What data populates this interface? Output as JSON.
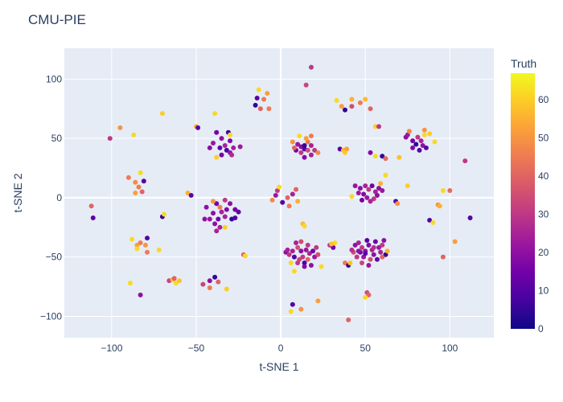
{
  "chart_data": {
    "type": "scatter",
    "title": "CMU-PIE",
    "xlabel": "t-SNE 1",
    "ylabel": "t-SNE 2",
    "xlim": [
      -128,
      126
    ],
    "ylim": [
      -118,
      126
    ],
    "xticks": [
      -100,
      -50,
      0,
      50,
      100
    ],
    "yticks": [
      -100,
      -50,
      0,
      50,
      100
    ],
    "grid": true,
    "colorbar": {
      "title": "Truth",
      "range": [
        0,
        67
      ],
      "ticks": [
        0,
        10,
        20,
        30,
        40,
        50,
        60
      ]
    },
    "colors": {
      "plot_bg": "#e5ecf6",
      "grid": "#ffffff",
      "colorscale": [
        "#0d0887",
        "#46039f",
        "#7201a8",
        "#9c179e",
        "#bd3786",
        "#d8576b",
        "#ed7953",
        "#fb9f3a",
        "#fdca26",
        "#f0f921"
      ]
    },
    "points": [
      {
        "x": -38,
        "y": 55,
        "c": 15
      },
      {
        "x": -35,
        "y": 50,
        "c": 20
      },
      {
        "x": -30,
        "y": 48,
        "c": 18
      },
      {
        "x": -40,
        "y": 46,
        "c": 22
      },
      {
        "x": -33,
        "y": 44,
        "c": 25
      },
      {
        "x": -36,
        "y": 42,
        "c": 12
      },
      {
        "x": -28,
        "y": 42,
        "c": 24
      },
      {
        "x": -42,
        "y": 42,
        "c": 19
      },
      {
        "x": -32,
        "y": 40,
        "c": 8
      },
      {
        "x": -30,
        "y": 38,
        "c": 21
      },
      {
        "x": -35,
        "y": 36,
        "c": 16
      },
      {
        "x": -29,
        "y": 36,
        "c": 27
      },
      {
        "x": -38,
        "y": 34,
        "c": 60
      },
      {
        "x": -24,
        "y": 43,
        "c": 23
      },
      {
        "x": -31,
        "y": 55,
        "c": 5
      },
      {
        "x": -30,
        "y": 53,
        "c": 62
      },
      {
        "x": -50,
        "y": 60,
        "c": 55
      },
      {
        "x": -49,
        "y": 59,
        "c": 12
      },
      {
        "x": -39,
        "y": 71,
        "c": 62
      },
      {
        "x": -14,
        "y": 84,
        "c": 10
      },
      {
        "x": -15,
        "y": 78,
        "c": 5
      },
      {
        "x": -13,
        "y": 91,
        "c": 62
      },
      {
        "x": -10,
        "y": 83,
        "c": 45
      },
      {
        "x": -8,
        "y": 88,
        "c": 52
      },
      {
        "x": -12,
        "y": 75,
        "c": 40
      },
      {
        "x": -7,
        "y": 75,
        "c": 45
      },
      {
        "x": 18,
        "y": 110,
        "c": 30
      },
      {
        "x": 15,
        "y": 95,
        "c": 33
      },
      {
        "x": 7,
        "y": 47,
        "c": 50
      },
      {
        "x": 10,
        "y": 45,
        "c": 22
      },
      {
        "x": 12,
        "y": 43,
        "c": 20
      },
      {
        "x": 14,
        "y": 41,
        "c": 10
      },
      {
        "x": 16,
        "y": 47,
        "c": 45
      },
      {
        "x": 18,
        "y": 44,
        "c": 25
      },
      {
        "x": 9,
        "y": 40,
        "c": 15
      },
      {
        "x": 12,
        "y": 38,
        "c": 30
      },
      {
        "x": 20,
        "y": 40,
        "c": 30
      },
      {
        "x": 14,
        "y": 34,
        "c": 18
      },
      {
        "x": 18,
        "y": 36,
        "c": 25
      },
      {
        "x": 22,
        "y": 38,
        "c": 48
      },
      {
        "x": 11,
        "y": 52,
        "c": 62
      },
      {
        "x": 15,
        "y": 50,
        "c": 52
      },
      {
        "x": 18,
        "y": 52,
        "c": 45
      },
      {
        "x": 14,
        "y": 44,
        "c": 5
      },
      {
        "x": 8,
        "y": 42,
        "c": 40
      },
      {
        "x": 16,
        "y": 40,
        "c": 35
      },
      {
        "x": 33,
        "y": 82,
        "c": 62
      },
      {
        "x": 36,
        "y": 77,
        "c": 52
      },
      {
        "x": 38,
        "y": 74,
        "c": 5
      },
      {
        "x": 42,
        "y": 83,
        "c": 55
      },
      {
        "x": 42,
        "y": 77,
        "c": 35
      },
      {
        "x": 47,
        "y": 80,
        "c": 45
      },
      {
        "x": 50,
        "y": 83,
        "c": 57
      },
      {
        "x": 53,
        "y": 75,
        "c": 40
      },
      {
        "x": 35,
        "y": 41,
        "c": 10
      },
      {
        "x": 37,
        "y": 40,
        "c": 57
      },
      {
        "x": 39,
        "y": 41,
        "c": 52
      },
      {
        "x": 38,
        "y": 38,
        "c": 60
      },
      {
        "x": 53,
        "y": 38,
        "c": 18
      },
      {
        "x": 56,
        "y": 35,
        "c": 62
      },
      {
        "x": 60,
        "y": 35,
        "c": 5
      },
      {
        "x": 62,
        "y": 33,
        "c": 42
      },
      {
        "x": 56,
        "y": 60,
        "c": 60
      },
      {
        "x": 58,
        "y": 60,
        "c": 30
      },
      {
        "x": 74,
        "y": 51,
        "c": 20
      },
      {
        "x": 75,
        "y": 53,
        "c": 22
      },
      {
        "x": 78,
        "y": 48,
        "c": 15
      },
      {
        "x": 81,
        "y": 51,
        "c": 30
      },
      {
        "x": 83,
        "y": 48,
        "c": 25
      },
      {
        "x": 80,
        "y": 45,
        "c": 5
      },
      {
        "x": 84,
        "y": 44,
        "c": 20
      },
      {
        "x": 86,
        "y": 42,
        "c": 12
      },
      {
        "x": 88,
        "y": 54,
        "c": 60
      },
      {
        "x": 85,
        "y": 53,
        "c": 62
      },
      {
        "x": 82,
        "y": 40,
        "c": 10
      },
      {
        "x": 78,
        "y": 42,
        "c": 18
      },
      {
        "x": 91,
        "y": 47,
        "c": 62
      },
      {
        "x": 76,
        "y": 56,
        "c": 48
      },
      {
        "x": 85,
        "y": 57,
        "c": 50
      },
      {
        "x": 70,
        "y": 34,
        "c": 58
      },
      {
        "x": -95,
        "y": 59,
        "c": 50
      },
      {
        "x": -101,
        "y": 50,
        "c": 30
      },
      {
        "x": -87,
        "y": 53,
        "c": 62
      },
      {
        "x": -90,
        "y": 17,
        "c": 45
      },
      {
        "x": -86,
        "y": 13,
        "c": 48
      },
      {
        "x": -83,
        "y": 21,
        "c": 62
      },
      {
        "x": -84,
        "y": 9,
        "c": 45
      },
      {
        "x": -81,
        "y": 14,
        "c": 10
      },
      {
        "x": -86,
        "y": 4,
        "c": 52
      },
      {
        "x": -82,
        "y": 5,
        "c": 40
      },
      {
        "x": -112,
        "y": -7,
        "c": 40
      },
      {
        "x": -111,
        "y": -17,
        "c": 12
      },
      {
        "x": -70,
        "y": 71,
        "c": 60
      },
      {
        "x": -70,
        "y": -16,
        "c": 5
      },
      {
        "x": -69,
        "y": -14,
        "c": 62
      },
      {
        "x": -55,
        "y": 4,
        "c": 55
      },
      {
        "x": -53,
        "y": 2,
        "c": 12
      },
      {
        "x": -38,
        "y": -5,
        "c": 15
      },
      {
        "x": -33,
        "y": -2,
        "c": 30
      },
      {
        "x": -36,
        "y": -8,
        "c": 45
      },
      {
        "x": -30,
        "y": -5,
        "c": 20
      },
      {
        "x": -32,
        "y": -10,
        "c": 18
      },
      {
        "x": -35,
        "y": -12,
        "c": 25
      },
      {
        "x": -40,
        "y": -13,
        "c": 20
      },
      {
        "x": -42,
        "y": -18,
        "c": 22
      },
      {
        "x": -37,
        "y": -18,
        "c": 15
      },
      {
        "x": -33,
        "y": -16,
        "c": 25
      },
      {
        "x": -29,
        "y": -18,
        "c": 5
      },
      {
        "x": -27,
        "y": -17,
        "c": 10
      },
      {
        "x": -27,
        "y": -10,
        "c": 15
      },
      {
        "x": -39,
        "y": -22,
        "c": 20
      },
      {
        "x": -36,
        "y": -25,
        "c": 25
      },
      {
        "x": -33,
        "y": -25,
        "c": 60
      },
      {
        "x": -45,
        "y": -18,
        "c": 20
      },
      {
        "x": -44,
        "y": -8,
        "c": 20
      },
      {
        "x": -40,
        "y": -3,
        "c": 50
      },
      {
        "x": -38,
        "y": -28,
        "c": 25
      },
      {
        "x": -25,
        "y": -12,
        "c": 12
      },
      {
        "x": -22,
        "y": -48,
        "c": 40
      },
      {
        "x": -21,
        "y": -49,
        "c": 62
      },
      {
        "x": -88,
        "y": -35,
        "c": 62
      },
      {
        "x": -83,
        "y": -38,
        "c": 45
      },
      {
        "x": -85,
        "y": -40,
        "c": 52
      },
      {
        "x": -85,
        "y": -43,
        "c": 62
      },
      {
        "x": -80,
        "y": -40,
        "c": 50
      },
      {
        "x": -79,
        "y": -46,
        "c": 45
      },
      {
        "x": -79,
        "y": -34,
        "c": 10
      },
      {
        "x": -72,
        "y": -44,
        "c": 62
      },
      {
        "x": -89,
        "y": -72,
        "c": 62
      },
      {
        "x": -83,
        "y": -82,
        "c": 20
      },
      {
        "x": -66,
        "y": -70,
        "c": 33
      },
      {
        "x": -64,
        "y": -69,
        "c": 57
      },
      {
        "x": -62,
        "y": -72,
        "c": 62
      },
      {
        "x": -60,
        "y": -70,
        "c": 58
      },
      {
        "x": -63,
        "y": -68,
        "c": 40
      },
      {
        "x": -46,
        "y": -73,
        "c": 33
      },
      {
        "x": -42,
        "y": -76,
        "c": 45
      },
      {
        "x": -42,
        "y": -70,
        "c": 20
      },
      {
        "x": -39,
        "y": -67,
        "c": 5
      },
      {
        "x": -37,
        "y": -71,
        "c": 40
      },
      {
        "x": -32,
        "y": -77,
        "c": 60
      },
      {
        "x": -5,
        "y": -2,
        "c": 48
      },
      {
        "x": -3,
        "y": 2,
        "c": 22
      },
      {
        "x": -2,
        "y": 6,
        "c": 30
      },
      {
        "x": -1,
        "y": 9,
        "c": 62
      },
      {
        "x": 1,
        "y": -4,
        "c": 10
      },
      {
        "x": 5,
        "y": -7,
        "c": 45
      },
      {
        "x": 4,
        "y": 0,
        "c": 40
      },
      {
        "x": 7,
        "y": 3,
        "c": 25
      },
      {
        "x": 10,
        "y": -3,
        "c": 55
      },
      {
        "x": 9,
        "y": 7,
        "c": 40
      },
      {
        "x": 13,
        "y": -22,
        "c": 57
      },
      {
        "x": 14,
        "y": -24,
        "c": 62
      },
      {
        "x": 3,
        "y": -46,
        "c": 20
      },
      {
        "x": 5,
        "y": -48,
        "c": 30
      },
      {
        "x": 7,
        "y": -45,
        "c": 25
      },
      {
        "x": 8,
        "y": -50,
        "c": 10
      },
      {
        "x": 10,
        "y": -42,
        "c": 35
      },
      {
        "x": 12,
        "y": -45,
        "c": 20
      },
      {
        "x": 13,
        "y": -50,
        "c": 30
      },
      {
        "x": 15,
        "y": -44,
        "c": 22
      },
      {
        "x": 17,
        "y": -47,
        "c": 25
      },
      {
        "x": 19,
        "y": -45,
        "c": 15
      },
      {
        "x": 16,
        "y": -52,
        "c": 40
      },
      {
        "x": 14,
        "y": -55,
        "c": 8
      },
      {
        "x": 11,
        "y": -52,
        "c": 33
      },
      {
        "x": 9,
        "y": -38,
        "c": 25
      },
      {
        "x": 12,
        "y": -37,
        "c": 35
      },
      {
        "x": 16,
        "y": -40,
        "c": 30
      },
      {
        "x": 20,
        "y": -50,
        "c": 22
      },
      {
        "x": 22,
        "y": -48,
        "c": 35
      },
      {
        "x": 6,
        "y": -55,
        "c": 62
      },
      {
        "x": 18,
        "y": -57,
        "c": 20
      },
      {
        "x": 24,
        "y": -58,
        "c": 62
      },
      {
        "x": 4,
        "y": -44,
        "c": 25
      },
      {
        "x": 10,
        "y": -55,
        "c": 30
      },
      {
        "x": 8,
        "y": -62,
        "c": 62
      },
      {
        "x": 14,
        "y": -58,
        "c": 18
      },
      {
        "x": 21,
        "y": -42,
        "c": 30
      },
      {
        "x": 7,
        "y": -90,
        "c": 10
      },
      {
        "x": 12,
        "y": -94,
        "c": 50
      },
      {
        "x": 6,
        "y": -96,
        "c": 62
      },
      {
        "x": 22,
        "y": -87,
        "c": 52
      },
      {
        "x": 40,
        "y": -103,
        "c": 40
      },
      {
        "x": 29,
        "y": -40,
        "c": 30
      },
      {
        "x": 32,
        "y": -38,
        "c": 62
      },
      {
        "x": 31,
        "y": -42,
        "c": 15
      },
      {
        "x": 30,
        "y": -39,
        "c": 58
      },
      {
        "x": 38,
        "y": -55,
        "c": 45
      },
      {
        "x": 40,
        "y": -57,
        "c": 5
      },
      {
        "x": 41,
        "y": -55,
        "c": 58
      },
      {
        "x": 44,
        "y": -40,
        "c": 20
      },
      {
        "x": 46,
        "y": -38,
        "c": 25
      },
      {
        "x": 48,
        "y": -42,
        "c": 30
      },
      {
        "x": 47,
        "y": -46,
        "c": 15
      },
      {
        "x": 49,
        "y": -50,
        "c": 22
      },
      {
        "x": 50,
        "y": -45,
        "c": 20
      },
      {
        "x": 52,
        "y": -40,
        "c": 18
      },
      {
        "x": 54,
        "y": -44,
        "c": 25
      },
      {
        "x": 55,
        "y": -48,
        "c": 20
      },
      {
        "x": 53,
        "y": -52,
        "c": 35
      },
      {
        "x": 51,
        "y": -36,
        "c": 10
      },
      {
        "x": 56,
        "y": -37,
        "c": 15
      },
      {
        "x": 58,
        "y": -42,
        "c": 22
      },
      {
        "x": 60,
        "y": -40,
        "c": 30
      },
      {
        "x": 59,
        "y": -46,
        "c": 25
      },
      {
        "x": 57,
        "y": -52,
        "c": 12
      },
      {
        "x": 61,
        "y": -36,
        "c": 20
      },
      {
        "x": 62,
        "y": -48,
        "c": 5
      },
      {
        "x": 45,
        "y": -50,
        "c": 30
      },
      {
        "x": 43,
        "y": -46,
        "c": 35
      },
      {
        "x": 42,
        "y": -44,
        "c": 28
      },
      {
        "x": 48,
        "y": -55,
        "c": 33
      },
      {
        "x": 52,
        "y": -57,
        "c": 22
      },
      {
        "x": 60,
        "y": -50,
        "c": 40
      },
      {
        "x": 63,
        "y": -45,
        "c": 55
      },
      {
        "x": 46,
        "y": -45,
        "c": 20
      },
      {
        "x": 50,
        "y": -47,
        "c": 12
      },
      {
        "x": 55,
        "y": -42,
        "c": 28
      },
      {
        "x": 51,
        "y": -80,
        "c": 35
      },
      {
        "x": 52,
        "y": -82,
        "c": 40
      },
      {
        "x": 50,
        "y": -84,
        "c": 62
      },
      {
        "x": 44,
        "y": 10,
        "c": 22
      },
      {
        "x": 47,
        "y": 8,
        "c": 20
      },
      {
        "x": 50,
        "y": 10,
        "c": 25
      },
      {
        "x": 52,
        "y": 7,
        "c": 30
      },
      {
        "x": 54,
        "y": 10,
        "c": 15
      },
      {
        "x": 56,
        "y": 5,
        "c": 25
      },
      {
        "x": 58,
        "y": 8,
        "c": 20
      },
      {
        "x": 49,
        "y": 3,
        "c": 18
      },
      {
        "x": 51,
        "y": 0,
        "c": 22
      },
      {
        "x": 53,
        "y": -3,
        "c": 25
      },
      {
        "x": 55,
        "y": -1,
        "c": 30
      },
      {
        "x": 57,
        "y": 2,
        "c": 20
      },
      {
        "x": 48,
        "y": -2,
        "c": 15
      },
      {
        "x": 46,
        "y": 4,
        "c": 22
      },
      {
        "x": 42,
        "y": 1,
        "c": 62
      },
      {
        "x": 59,
        "y": 12,
        "c": 55
      },
      {
        "x": 60,
        "y": 6,
        "c": 22
      },
      {
        "x": 62,
        "y": 19,
        "c": 62
      },
      {
        "x": 68,
        "y": -3,
        "c": 10
      },
      {
        "x": 69,
        "y": -5,
        "c": 50
      },
      {
        "x": 75,
        "y": 10,
        "c": 60
      },
      {
        "x": 88,
        "y": -19,
        "c": 10
      },
      {
        "x": 90,
        "y": -21,
        "c": 62
      },
      {
        "x": 93,
        "y": -6,
        "c": 50
      },
      {
        "x": 94,
        "y": -7,
        "c": 55
      },
      {
        "x": 96,
        "y": 6,
        "c": 62
      },
      {
        "x": 100,
        "y": 6,
        "c": 42
      },
      {
        "x": 96,
        "y": -50,
        "c": 40
      },
      {
        "x": 103,
        "y": -37,
        "c": 52
      },
      {
        "x": 109,
        "y": 31,
        "c": 30
      },
      {
        "x": 112,
        "y": -17,
        "c": 10
      }
    ]
  }
}
